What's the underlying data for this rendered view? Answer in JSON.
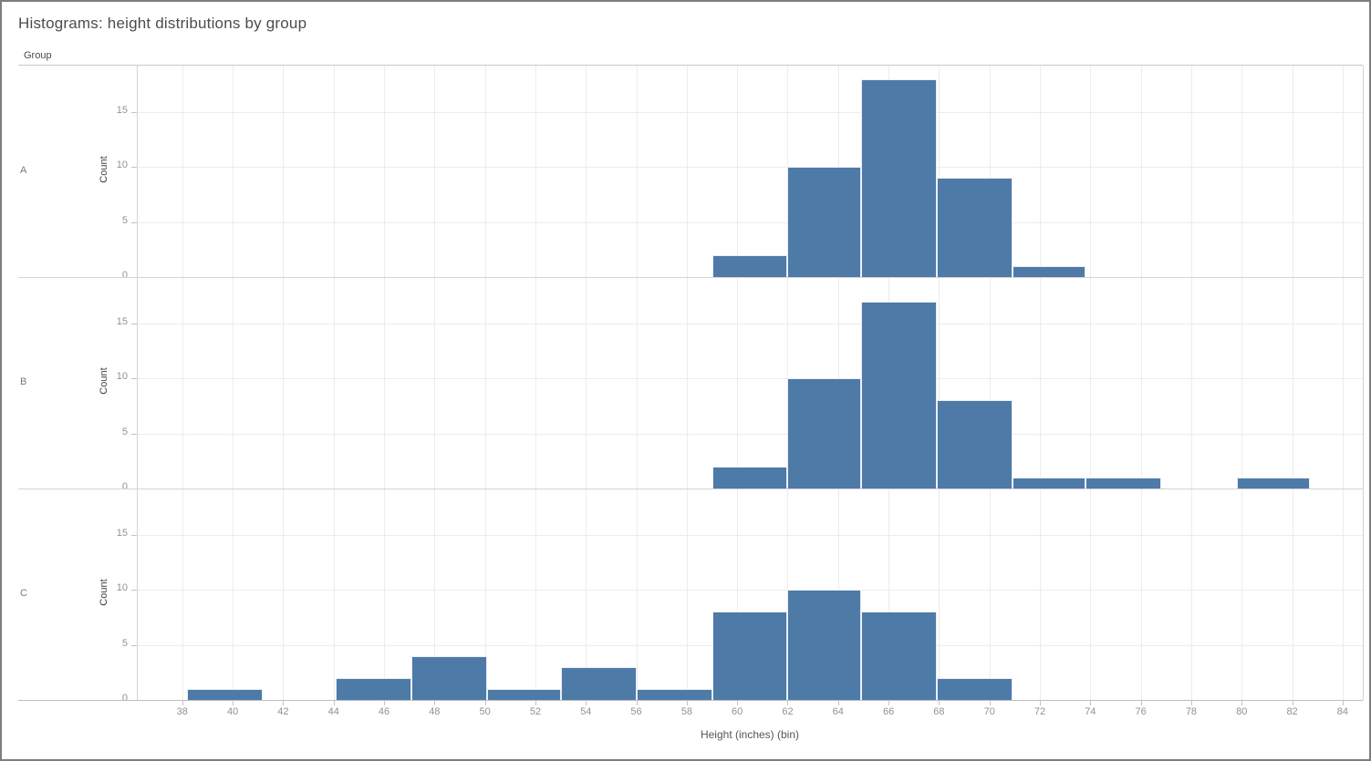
{
  "page": {
    "title": "Histograms: height distributions by group",
    "facet_header": "Group"
  },
  "colors": {
    "bar": "#4e7aa8",
    "bar_seam": "rgba(255,255,255,0.88)",
    "grid_line": "#ececec",
    "panel_line": "#d4d4d4",
    "axis_line": "#bdbdbd",
    "tick_mark": "#c3c3c3",
    "tick_label": "#919191",
    "row_label": "#7a7a7a",
    "title": "#4c4c4c",
    "axis_title": "#565656",
    "background": "#ffffff",
    "page_border": "#7d7d7d"
  },
  "chart_data": {
    "type": "bar",
    "subtype": "faceted-histogram",
    "title": "Histograms: height distributions by group",
    "facet_field": "Group",
    "xlabel": "Height (inches) (bin)",
    "ylabel": "Count",
    "bin_width_inches": 3,
    "grid": true,
    "legend": "none",
    "x_ticks": [
      38,
      40,
      42,
      44,
      46,
      48,
      50,
      52,
      54,
      56,
      58,
      60,
      62,
      64,
      66,
      68,
      70,
      72,
      74,
      76,
      78,
      80,
      82,
      84
    ],
    "y_ticks": [
      0,
      5,
      10,
      15
    ],
    "xlim": [
      36.2,
      84.8
    ],
    "ylim": [
      0,
      19.2
    ],
    "rows": [
      {
        "group": "A",
        "total": 40,
        "bars": [
          {
            "x0": 59.0,
            "x1": 62.0,
            "count": 2
          },
          {
            "x0": 62.0,
            "x1": 64.9,
            "count": 10
          },
          {
            "x0": 64.9,
            "x1": 67.9,
            "count": 18
          },
          {
            "x0": 67.9,
            "x1": 70.9,
            "count": 9
          },
          {
            "x0": 70.9,
            "x1": 73.8,
            "count": 1
          }
        ]
      },
      {
        "group": "B",
        "total": 40,
        "bars": [
          {
            "x0": 59.0,
            "x1": 62.0,
            "count": 2
          },
          {
            "x0": 62.0,
            "x1": 64.9,
            "count": 10
          },
          {
            "x0": 64.9,
            "x1": 67.9,
            "count": 17
          },
          {
            "x0": 67.9,
            "x1": 70.9,
            "count": 8
          },
          {
            "x0": 70.9,
            "x1": 73.8,
            "count": 1
          },
          {
            "x0": 73.8,
            "x1": 76.8,
            "count": 1
          },
          {
            "x0": 79.8,
            "x1": 82.7,
            "count": 1
          }
        ]
      },
      {
        "group": "C",
        "total": 40,
        "bars": [
          {
            "x0": 38.2,
            "x1": 41.2,
            "count": 1
          },
          {
            "x0": 44.1,
            "x1": 47.1,
            "count": 2
          },
          {
            "x0": 47.1,
            "x1": 50.1,
            "count": 4
          },
          {
            "x0": 50.1,
            "x1": 53.0,
            "count": 1
          },
          {
            "x0": 53.0,
            "x1": 56.0,
            "count": 3
          },
          {
            "x0": 56.0,
            "x1": 59.0,
            "count": 1
          },
          {
            "x0": 59.0,
            "x1": 62.0,
            "count": 8
          },
          {
            "x0": 62.0,
            "x1": 64.9,
            "count": 10
          },
          {
            "x0": 64.9,
            "x1": 67.9,
            "count": 8
          },
          {
            "x0": 67.9,
            "x1": 70.9,
            "count": 2
          }
        ]
      }
    ]
  }
}
